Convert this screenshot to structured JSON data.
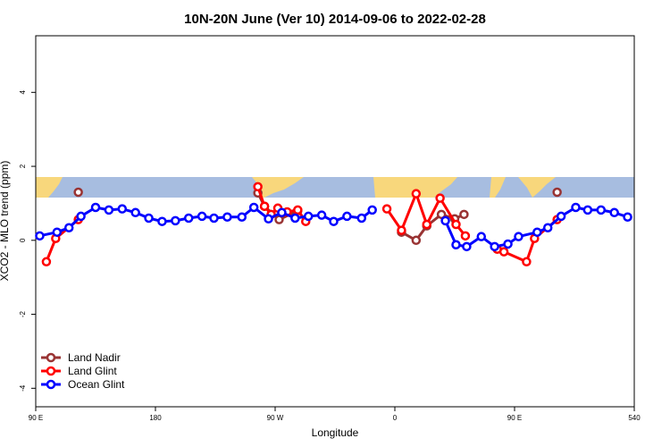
{
  "chart_data": {
    "type": "line",
    "title": "10N-20N June (Ver 10)   2014-09-06 to 2022-02-28",
    "x_label": "Longitude",
    "y_label": "XCO2 - MLO trend (ppm)",
    "xlim": [
      90,
      540
    ],
    "ylim": [
      -4.5,
      5.53
    ],
    "xticks": [
      {
        "value": 90,
        "label": "90 E"
      },
      180,
      {
        "value": 270,
        "label": "90 W"
      },
      {
        "value": 360,
        "label": "0"
      },
      {
        "value": 450,
        "label": "90 E"
      },
      540
    ],
    "yticks": [
      -4,
      -2,
      0,
      2,
      4
    ],
    "legend": "bottom-left",
    "series": [
      {
        "name": "Land Nadir",
        "color": "#993333",
        "x": [
          122,
          190,
          257,
          262,
          273,
          287,
          330,
          365,
          376,
          384,
          395,
          405,
          412,
          450,
          482
        ],
        "values": [
          1.3,
          null,
          1.28,
          0.92,
          0.56,
          0.8,
          null,
          0.22,
          0.0,
          0.39,
          0.7,
          0.58,
          0.7,
          null,
          1.3
        ]
      },
      {
        "name": "Land Glint",
        "color": "#ff0000",
        "x": [
          98,
          105,
          122,
          190,
          257,
          262,
          267,
          272,
          279,
          287,
          293,
          320,
          354,
          365,
          376,
          384,
          394,
          406,
          413,
          425,
          437,
          442,
          459,
          465,
          482
        ],
        "values": [
          -0.58,
          0.05,
          0.56,
          null,
          1.45,
          0.92,
          0.7,
          0.87,
          0.77,
          0.82,
          0.51,
          null,
          0.85,
          0.27,
          1.26,
          0.43,
          1.14,
          0.43,
          0.12,
          null,
          -0.24,
          -0.31,
          -0.58,
          0.05,
          0.56
        ]
      },
      {
        "name": "Ocean Glint",
        "color": "#0000ff",
        "x": [
          93,
          106,
          115,
          124,
          135,
          145,
          155,
          165,
          175,
          185,
          195,
          205,
          215,
          224,
          234,
          245,
          254,
          265,
          275,
          285,
          295,
          305,
          314,
          324,
          335,
          343,
          370,
          398,
          406,
          414,
          425,
          435,
          445,
          453,
          467,
          475,
          485,
          496,
          505,
          515,
          525,
          535
        ],
        "values": [
          0.12,
          0.22,
          0.34,
          0.65,
          0.89,
          0.82,
          0.85,
          0.75,
          0.6,
          0.51,
          0.53,
          0.6,
          0.65,
          0.6,
          0.63,
          0.63,
          0.89,
          0.58,
          0.75,
          0.6,
          0.65,
          0.68,
          0.51,
          0.65,
          0.6,
          0.82,
          null,
          0.53,
          -0.12,
          -0.17,
          0.1,
          -0.17,
          -0.1,
          0.1,
          0.22,
          0.34,
          0.65,
          0.89,
          0.82,
          0.82,
          0.75,
          0.63
        ]
      }
    ]
  }
}
